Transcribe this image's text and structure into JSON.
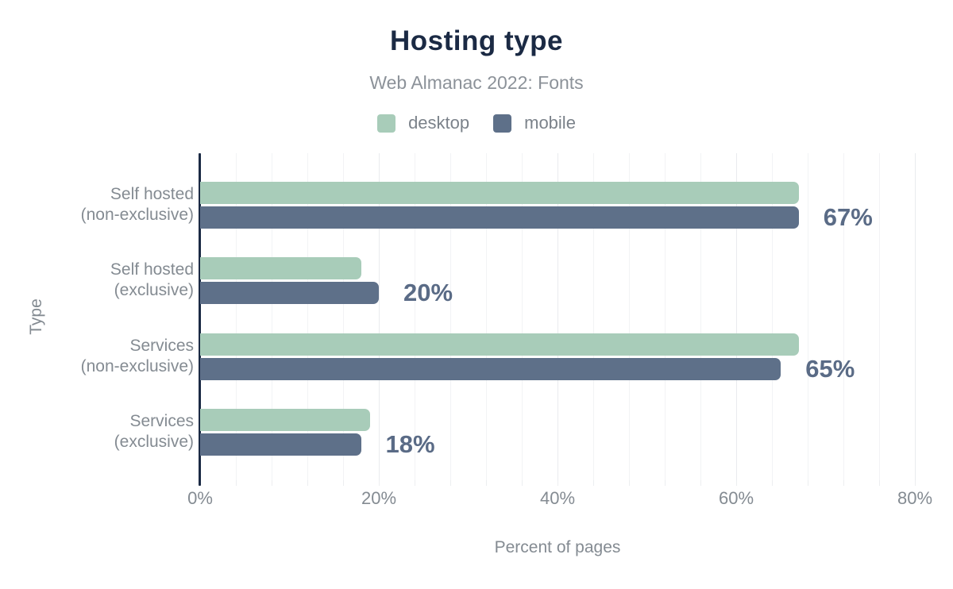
{
  "chart_data": {
    "type": "bar",
    "orientation": "horizontal",
    "title": "Hosting type",
    "subtitle": "Web Almanac 2022: Fonts",
    "xlabel": "Percent of pages",
    "ylabel": "Type",
    "categories": [
      "Self hosted (non-exclusive)",
      "Self hosted (exclusive)",
      "Services (non-exclusive)",
      "Services (exclusive)"
    ],
    "category_lines": [
      [
        "Self hosted",
        "(non-exclusive)"
      ],
      [
        "Self hosted",
        "(exclusive)"
      ],
      [
        "Services",
        "(non-exclusive)"
      ],
      [
        "Services",
        "(exclusive)"
      ]
    ],
    "series": [
      {
        "name": "desktop",
        "color": "#a8ccb9",
        "values": [
          67,
          18,
          67,
          19
        ]
      },
      {
        "name": "mobile",
        "color": "#5e7089",
        "values": [
          67,
          20,
          65,
          18
        ]
      }
    ],
    "annotations": [
      "67%",
      "20%",
      "65%",
      "18%"
    ],
    "xticks": [
      "0%",
      "20%",
      "40%",
      "60%",
      "80%"
    ],
    "xlim": [
      0,
      80
    ],
    "grid": "vertical; minor line every 4%, major line every 20%",
    "legend_position": "top-center"
  },
  "colors": {
    "background": "#ffffff",
    "title": "#1b2a44",
    "subtitle": "#8c9299",
    "axis_line": "#1b2a44",
    "gray_text": "#848b92",
    "annotation_text": "#5a6b86",
    "grid_minor": "#f2f3f5",
    "grid_major": "#e9ebee",
    "desktop": "#a8ccb9",
    "mobile": "#5e7089"
  }
}
